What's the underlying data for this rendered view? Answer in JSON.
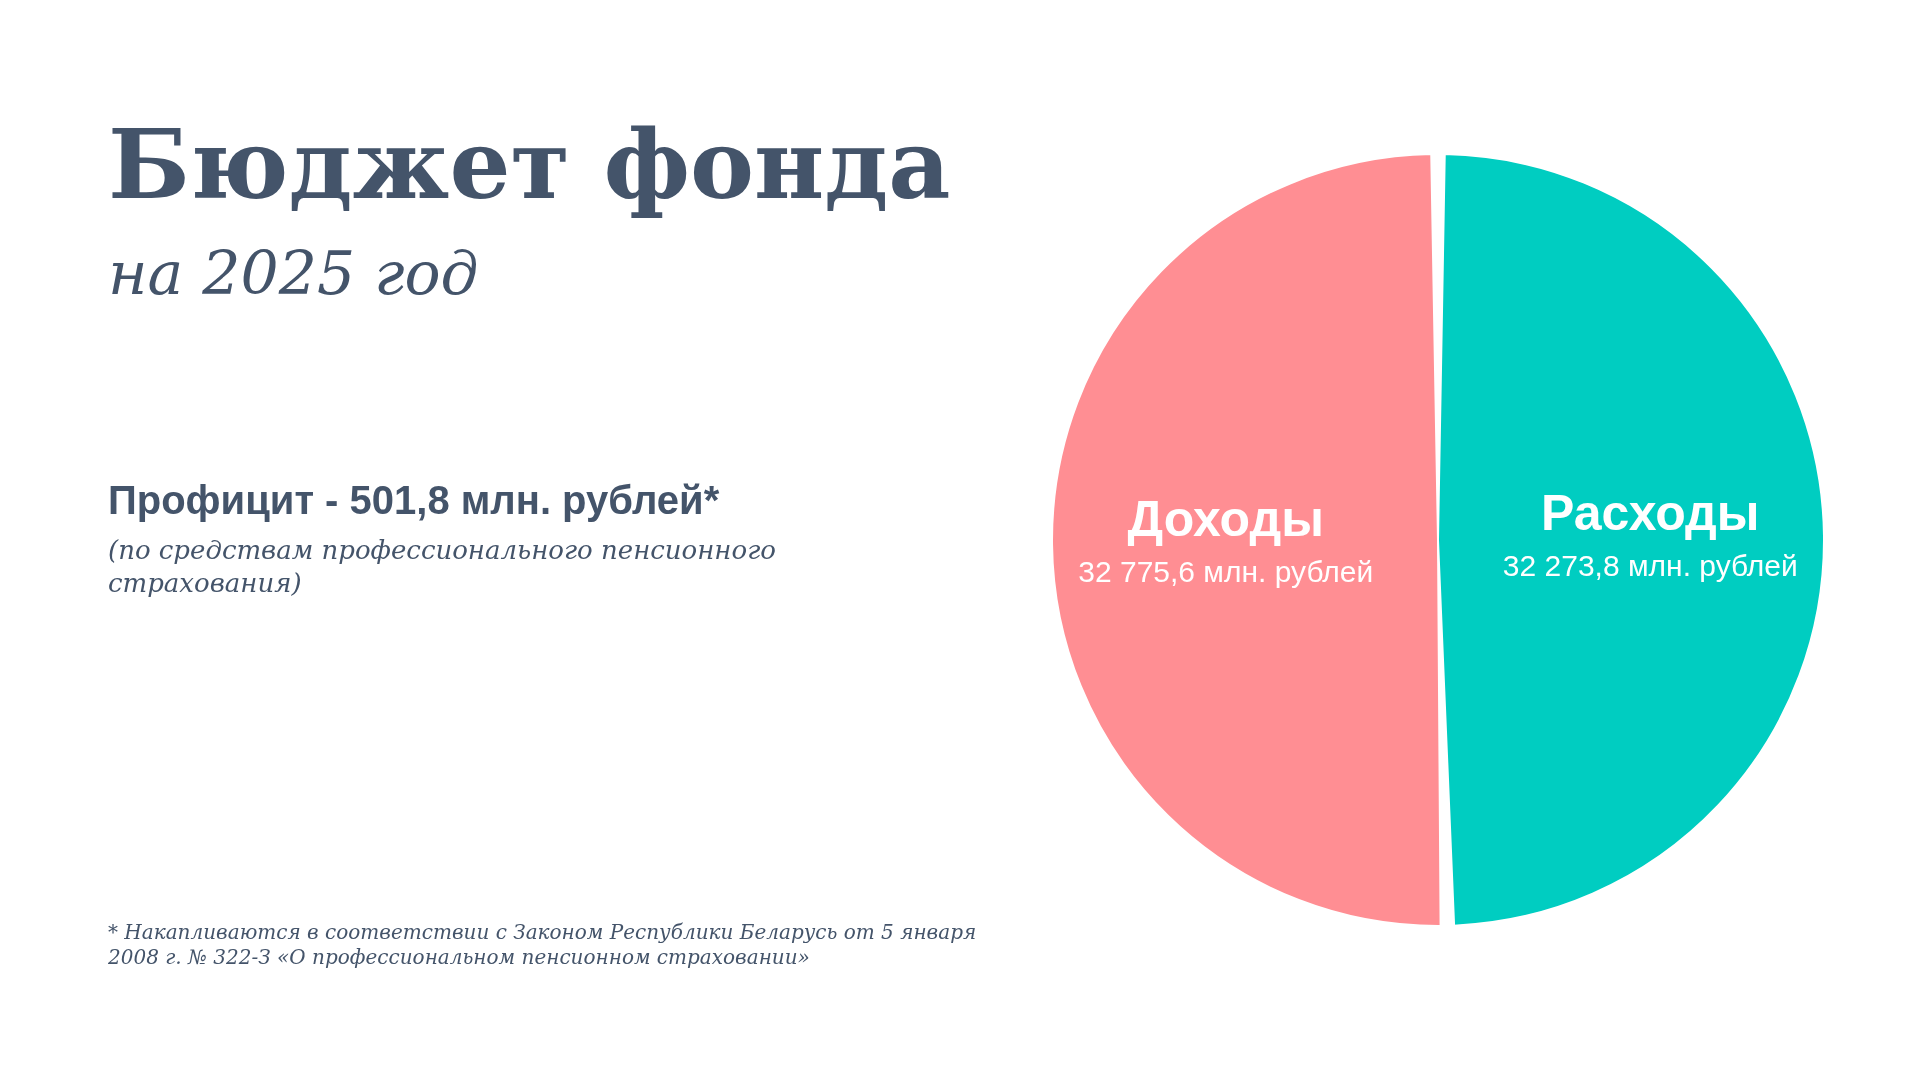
{
  "chart_data": {
    "type": "pie",
    "title": "Бюджет фонда",
    "subtitle": "на 2025 год",
    "categories": [
      "Доходы",
      "Расходы"
    ],
    "values": [
      32775.6,
      32273.8
    ],
    "value_labels": [
      "32 775,6 млн. рублей",
      "32 273,8 млн. рублей"
    ],
    "colors": [
      "#ff8e93",
      "#00cdc1"
    ],
    "annotations": [
      "Профицит - 501,8 млн. рублей*",
      "(по средствам профессионального пенсионного страхования)",
      "* Накапливаются в соответствии с Законом Республики Беларусь от 5 января 2008 г. № 322-З «О профессиональном пенсионном страховании»"
    ],
    "legend": false
  }
}
